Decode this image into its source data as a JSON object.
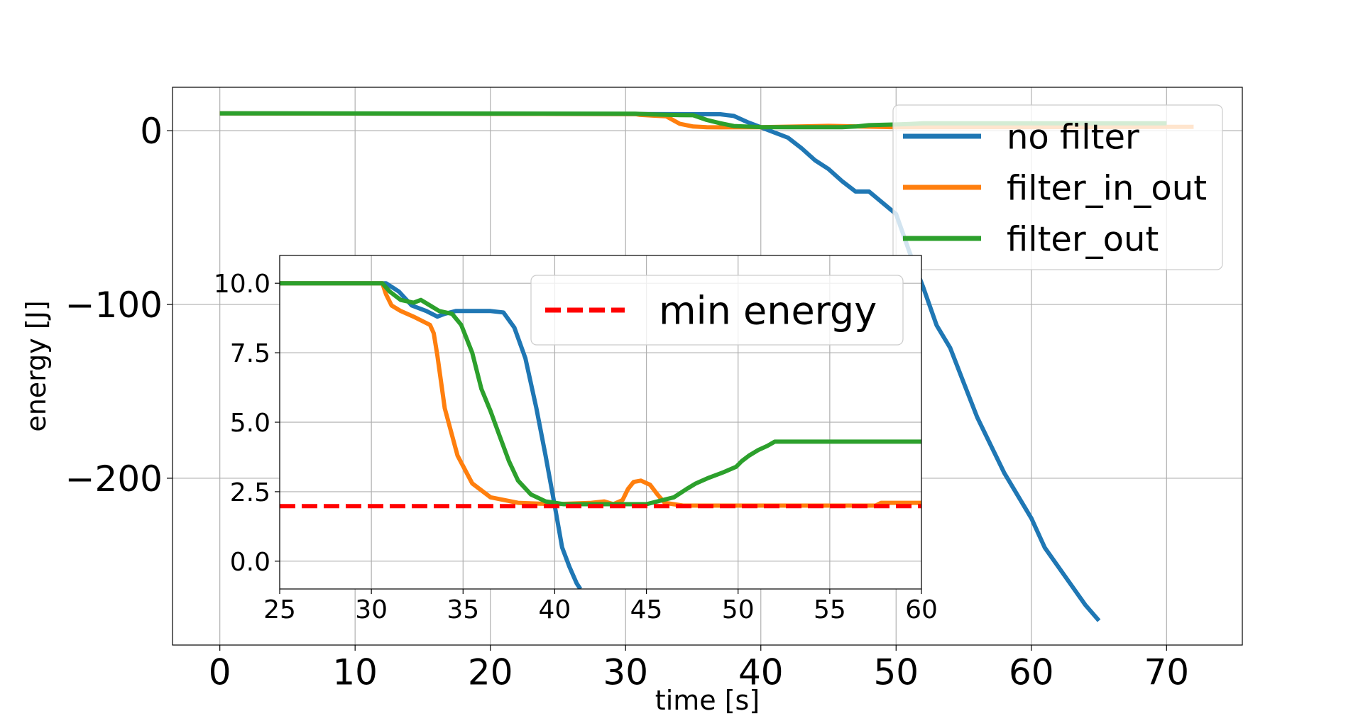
{
  "chart_data": [
    {
      "type": "line",
      "xlabel": "time [s]",
      "ylabel": "energy [J]",
      "xlim": [
        -3.5,
        75.6
      ],
      "ylim": [
        -296,
        25
      ],
      "xticks": [
        0,
        10,
        20,
        30,
        40,
        50,
        60,
        70
      ],
      "xtick_labels": [
        "0",
        "10",
        "20",
        "30",
        "40",
        "50",
        "60",
        "70"
      ],
      "yticks": [
        0,
        -100,
        -200
      ],
      "ytick_labels": [
        "0",
        "−100",
        "−200"
      ],
      "grid": true,
      "legend": {
        "placement": "upper-right",
        "entries": [
          "no filter",
          "filter_in_out",
          "filter_out"
        ]
      },
      "series": [
        {
          "name": "no filter",
          "color": "#1f77b4",
          "x": [
            0,
            37,
            38,
            39,
            40,
            41,
            42,
            43,
            44,
            45,
            46,
            47,
            48,
            50,
            51,
            52,
            53,
            54,
            55,
            56,
            58,
            60,
            61,
            63,
            64,
            65
          ],
          "y": [
            10,
            9.5,
            8.5,
            5,
            2,
            -1,
            -4,
            -10,
            -17,
            -22,
            -29,
            -35,
            -35,
            -48,
            -70,
            -90,
            -112,
            -125,
            -145,
            -165,
            -197,
            -223,
            -240,
            -262,
            -273,
            -282
          ]
        },
        {
          "name": "filter_in_out",
          "color": "#ff7f0e",
          "x": [
            0,
            30.7,
            31,
            32,
            33,
            34,
            35,
            36,
            37,
            40,
            45,
            50,
            60,
            70,
            72
          ],
          "y": [
            10,
            9.6,
            9.2,
            8.7,
            8.3,
            4,
            2.4,
            2.05,
            1.97,
            2.0,
            2.8,
            2.05,
            2.1,
            2.2,
            2.2
          ]
        },
        {
          "name": "filter_out",
          "color": "#2ca02c",
          "x": [
            0,
            30.7,
            32,
            34,
            35,
            36,
            37,
            38,
            40,
            42,
            46,
            47,
            48,
            50,
            51,
            52,
            60,
            70
          ],
          "y": [
            10,
            9.8,
            9.4,
            9.0,
            8.9,
            6.2,
            4.3,
            2.7,
            2.1,
            2.05,
            2.05,
            2.4,
            3.2,
            3.6,
            3.9,
            4.3,
            4.3,
            4.3
          ]
        }
      ]
    },
    {
      "type": "line",
      "xlim": [
        25,
        60
      ],
      "ylim": [
        -1.0,
        11.0
      ],
      "xticks": [
        25,
        30,
        35,
        40,
        45,
        50,
        55,
        60
      ],
      "xtick_labels": [
        "25",
        "30",
        "35",
        "40",
        "45",
        "50",
        "55",
        "60"
      ],
      "yticks": [
        0.0,
        2.5,
        5.0,
        7.5,
        10.0
      ],
      "ytick_labels": [
        "0.0",
        "2.5",
        "5.0",
        "7.5",
        "10.0"
      ],
      "grid": true,
      "legend": {
        "placement": "upper-right",
        "entries": [
          "min energy"
        ]
      },
      "series": [
        {
          "name": "no filter",
          "color": "#1f77b4",
          "x": [
            25,
            30.8,
            31.5,
            32.2,
            33,
            33.6,
            34,
            34.6,
            35.5,
            36.5,
            37.2,
            37.8,
            38.4,
            39,
            39.5,
            40,
            40.4,
            40.8,
            41.2,
            41.4
          ],
          "y": [
            10.0,
            10.0,
            9.7,
            9.2,
            9.0,
            8.8,
            8.9,
            9.0,
            9.0,
            9.0,
            8.95,
            8.4,
            7.3,
            5.5,
            3.8,
            2.0,
            0.5,
            -0.2,
            -0.8,
            -1.0
          ]
        },
        {
          "name": "filter_in_out",
          "color": "#ff7f0e",
          "x": [
            25,
            30.6,
            30.8,
            31.1,
            31.6,
            32.3,
            32.9,
            33.2,
            33.4,
            33.6,
            34,
            34.7,
            35.5,
            36.5,
            38,
            40,
            42,
            42.7,
            43.2,
            43.7,
            44,
            44.3,
            44.7,
            45.2,
            45.6,
            46,
            47,
            50,
            55,
            57.5,
            57.8,
            60
          ],
          "y": [
            10.0,
            10.0,
            9.6,
            9.2,
            9.0,
            8.8,
            8.6,
            8.5,
            8.2,
            7.4,
            5.5,
            3.8,
            2.8,
            2.3,
            2.1,
            2.05,
            2.1,
            2.15,
            2.05,
            2.2,
            2.6,
            2.85,
            2.9,
            2.75,
            2.4,
            2.1,
            2.0,
            2.0,
            2.0,
            2.0,
            2.1,
            2.1
          ]
        },
        {
          "name": "filter_out",
          "color": "#2ca02c",
          "x": [
            25,
            30.6,
            31,
            31.6,
            32.3,
            32.7,
            33.2,
            33.7,
            34.4,
            34.9,
            35.5,
            36,
            36.5,
            37,
            37.5,
            38,
            38.7,
            39.5,
            40.5,
            42,
            45,
            46.5,
            47.2,
            47.7,
            48.4,
            49.2,
            49.9,
            50.2,
            50.6,
            51.1,
            51.6,
            52,
            60
          ],
          "y": [
            10.0,
            10.0,
            9.7,
            9.4,
            9.3,
            9.4,
            9.2,
            9.0,
            8.9,
            8.5,
            7.5,
            6.2,
            5.4,
            4.5,
            3.6,
            2.9,
            2.4,
            2.15,
            2.05,
            2.05,
            2.05,
            2.3,
            2.6,
            2.8,
            3.0,
            3.2,
            3.4,
            3.6,
            3.8,
            4.0,
            4.15,
            4.3,
            4.3
          ]
        },
        {
          "name": "min energy",
          "color": "#ff0000",
          "dashed": true,
          "x": [
            25,
            60
          ],
          "y": [
            1.98,
            1.98
          ]
        }
      ]
    }
  ]
}
